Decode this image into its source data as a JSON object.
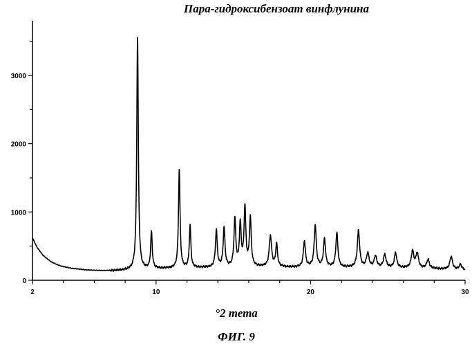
{
  "chart_data": {
    "type": "line",
    "title": "Пара-гидроксибензоат винфлунина",
    "xlabel": "°2 тета",
    "ylabel": "",
    "caption": "ФИГ. 9",
    "xlim": [
      2,
      30
    ],
    "ylim": [
      0,
      3800
    ],
    "x_ticks": [
      2,
      10,
      20,
      30
    ],
    "x_tick_labels": [
      "2",
      "10",
      "20",
      "30"
    ],
    "y_ticks": [
      0,
      1000,
      2000,
      3000
    ],
    "y_tick_labels": [
      "0",
      "1000",
      "2000",
      "3000"
    ],
    "grid": false,
    "color": "#000000",
    "baseline": [
      [
        2.0,
        620
      ],
      [
        2.3,
        480
      ],
      [
        2.7,
        360
      ],
      [
        3.2,
        270
      ],
      [
        3.8,
        210
      ],
      [
        4.5,
        175
      ],
      [
        5.5,
        150
      ],
      [
        6.5,
        140
      ],
      [
        7.5,
        142
      ],
      [
        8.3,
        150
      ],
      [
        9.0,
        160
      ],
      [
        10.0,
        170
      ],
      [
        12.0,
        180
      ],
      [
        14.0,
        190
      ],
      [
        16.0,
        200
      ],
      [
        18.0,
        195
      ],
      [
        19.0,
        190
      ],
      [
        20.0,
        195
      ],
      [
        22.0,
        190
      ],
      [
        24.0,
        185
      ],
      [
        26.0,
        180
      ],
      [
        28.0,
        170
      ],
      [
        30.0,
        150
      ]
    ],
    "peaks": [
      {
        "x": 8.8,
        "height": 3560,
        "width": 0.06
      },
      {
        "x": 9.7,
        "height": 710,
        "width": 0.06
      },
      {
        "x": 11.5,
        "height": 1620,
        "width": 0.06
      },
      {
        "x": 12.2,
        "height": 800,
        "width": 0.06
      },
      {
        "x": 13.9,
        "height": 730,
        "width": 0.07
      },
      {
        "x": 14.4,
        "height": 760,
        "width": 0.07
      },
      {
        "x": 15.1,
        "height": 890,
        "width": 0.07
      },
      {
        "x": 15.45,
        "height": 810,
        "width": 0.07
      },
      {
        "x": 15.75,
        "height": 1050,
        "width": 0.07
      },
      {
        "x": 16.1,
        "height": 900,
        "width": 0.07
      },
      {
        "x": 17.4,
        "height": 650,
        "width": 0.09
      },
      {
        "x": 17.8,
        "height": 520,
        "width": 0.07
      },
      {
        "x": 19.6,
        "height": 570,
        "width": 0.08
      },
      {
        "x": 20.3,
        "height": 800,
        "width": 0.08
      },
      {
        "x": 20.9,
        "height": 600,
        "width": 0.08
      },
      {
        "x": 21.7,
        "height": 690,
        "width": 0.08
      },
      {
        "x": 23.1,
        "height": 720,
        "width": 0.09
      },
      {
        "x": 23.7,
        "height": 390,
        "width": 0.1
      },
      {
        "x": 24.2,
        "height": 350,
        "width": 0.1
      },
      {
        "x": 24.8,
        "height": 370,
        "width": 0.1
      },
      {
        "x": 25.5,
        "height": 400,
        "width": 0.09
      },
      {
        "x": 26.6,
        "height": 420,
        "width": 0.1
      },
      {
        "x": 26.9,
        "height": 390,
        "width": 0.1
      },
      {
        "x": 27.6,
        "height": 300,
        "width": 0.1
      },
      {
        "x": 29.1,
        "height": 350,
        "width": 0.1
      },
      {
        "x": 29.7,
        "height": 230,
        "width": 0.1
      }
    ]
  }
}
